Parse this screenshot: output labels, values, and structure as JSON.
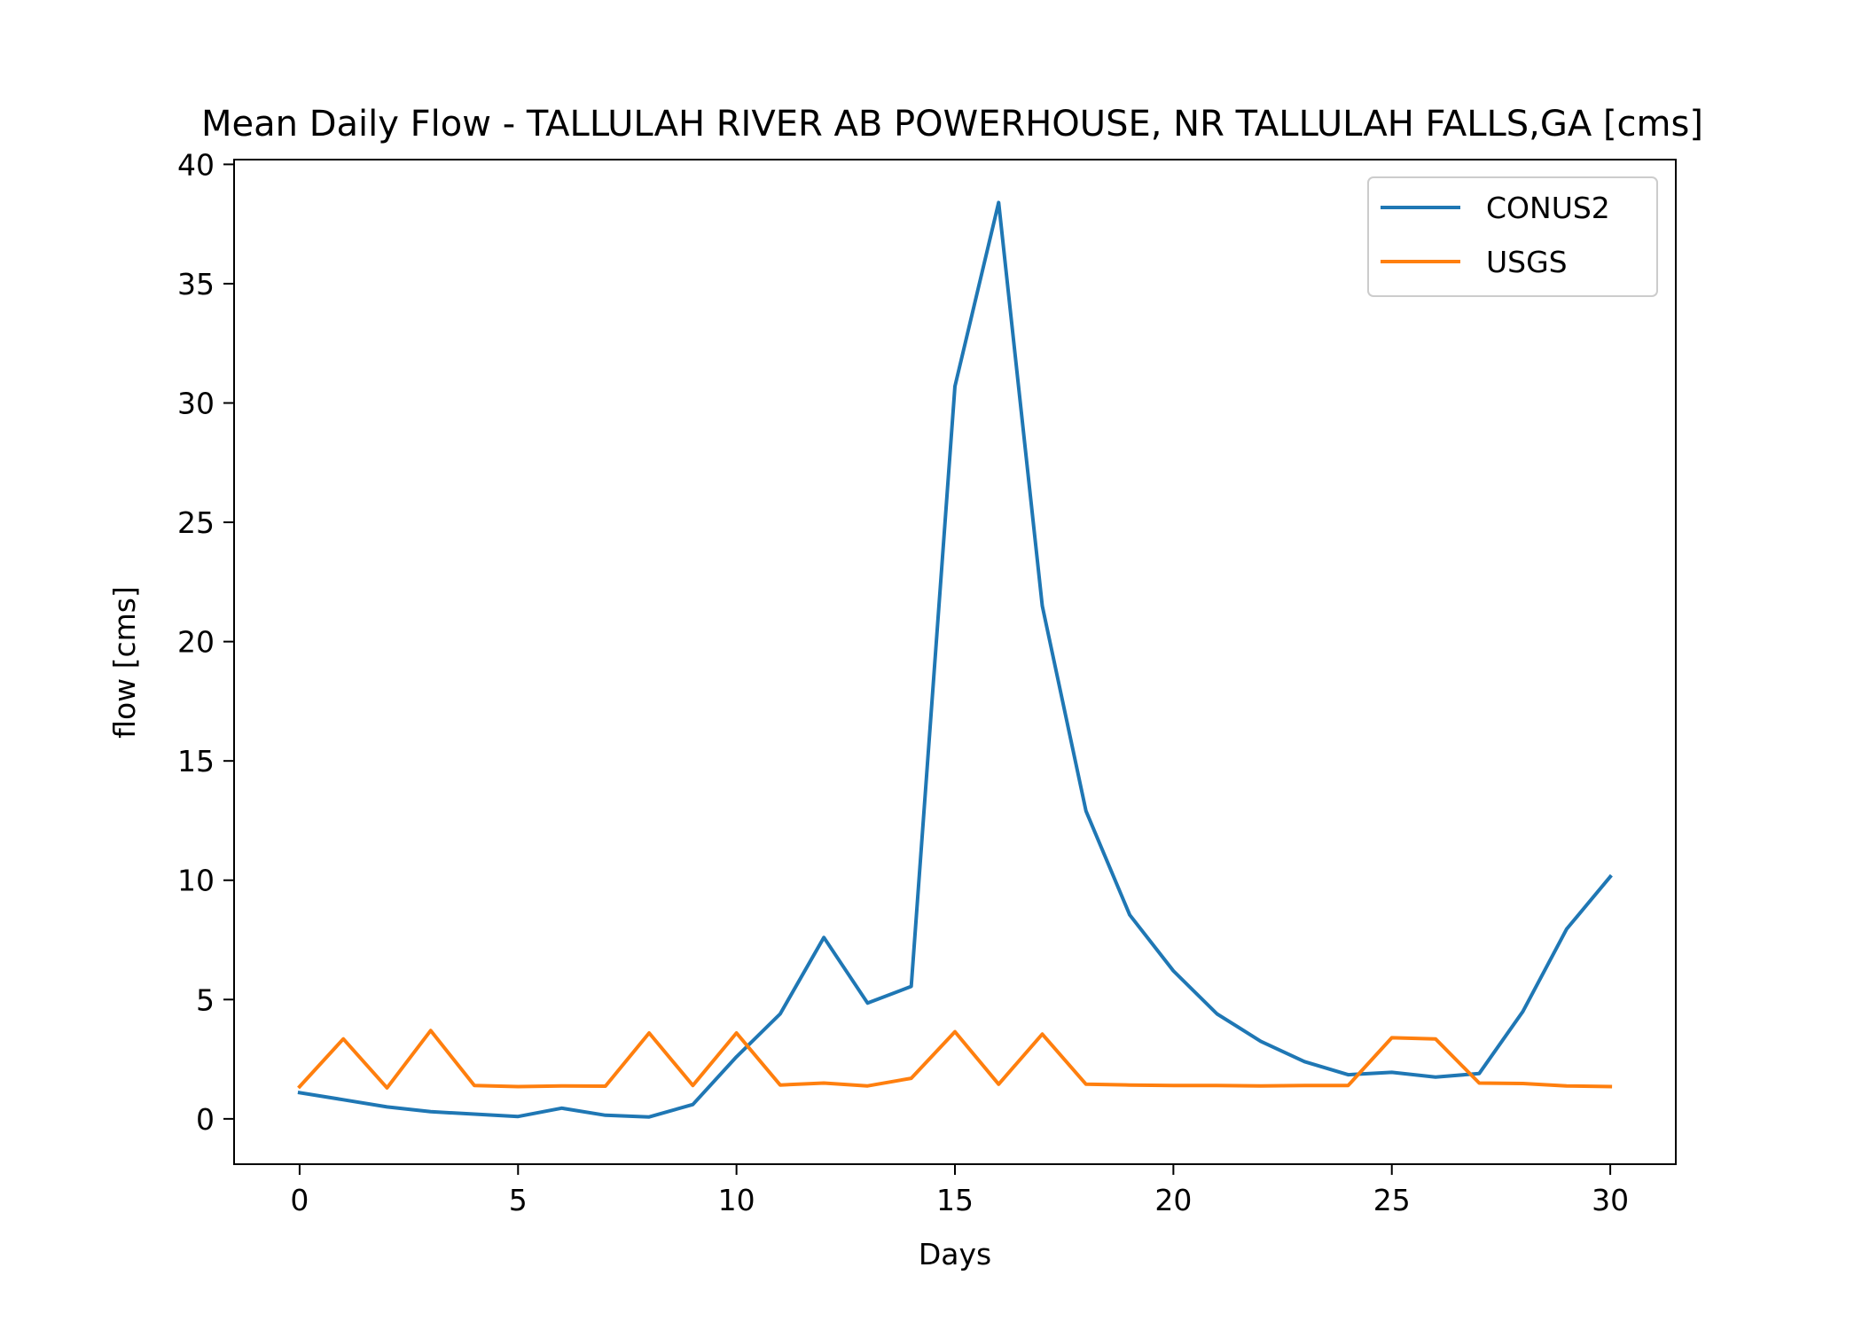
{
  "chart_data": {
    "type": "line",
    "title": "Mean Daily Flow - TALLULAH RIVER AB POWERHOUSE, NR TALLULAH FALLS,GA [cms]",
    "xlabel": "Days",
    "ylabel": "flow [cms]",
    "xlim": [
      -1.5,
      31.5
    ],
    "ylim": [
      -1.9,
      40.2
    ],
    "xticks": [
      0,
      5,
      10,
      15,
      20,
      25,
      30
    ],
    "yticks": [
      0,
      5,
      10,
      15,
      20,
      25,
      30,
      35,
      40
    ],
    "legend_position": "top-right",
    "grid": false,
    "x": [
      0,
      1,
      2,
      3,
      4,
      5,
      6,
      7,
      8,
      9,
      10,
      11,
      12,
      13,
      14,
      15,
      16,
      17,
      18,
      19,
      20,
      21,
      22,
      23,
      24,
      25,
      26,
      27,
      28,
      29,
      30
    ],
    "series": [
      {
        "name": "CONUS2",
        "color": "#1f77b4",
        "values": [
          1.1,
          0.8,
          0.5,
          0.3,
          0.2,
          0.1,
          0.45,
          0.15,
          0.08,
          0.6,
          2.6,
          4.4,
          7.6,
          4.85,
          5.55,
          30.7,
          38.4,
          21.5,
          12.9,
          8.55,
          6.2,
          4.4,
          3.25,
          2.4,
          1.85,
          1.95,
          1.75,
          1.9,
          4.5,
          7.95,
          10.15
        ]
      },
      {
        "name": "USGS",
        "color": "#ff7f0e",
        "values": [
          1.35,
          3.35,
          1.3,
          3.7,
          1.4,
          1.35,
          1.38,
          1.37,
          3.6,
          1.4,
          3.6,
          1.42,
          1.5,
          1.38,
          1.7,
          3.65,
          1.45,
          3.55,
          1.45,
          1.42,
          1.4,
          1.4,
          1.38,
          1.4,
          1.4,
          3.4,
          3.35,
          1.5,
          1.48,
          1.38,
          1.35
        ]
      }
    ]
  }
}
